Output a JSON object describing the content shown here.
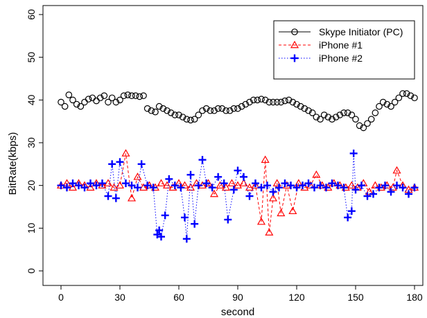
{
  "chart_data": {
    "type": "scatter",
    "title": "",
    "xlabel": "second",
    "ylabel": "BitRate(kbps)",
    "xlim": [
      0,
      180
    ],
    "ylim": [
      0,
      60
    ],
    "xticks": [
      "0",
      "30",
      "60",
      "90",
      "120",
      "150",
      "180"
    ],
    "yticks": [
      "0",
      "10",
      "20",
      "30",
      "40",
      "50",
      "60"
    ],
    "grid": false,
    "legend_position": "top-right",
    "series": [
      {
        "name": "Skype Initiator (PC)",
        "color": "#000000",
        "marker": "circle",
        "line": "solid",
        "x": [
          0,
          2,
          4,
          6,
          8,
          10,
          12,
          14,
          16,
          18,
          20,
          22,
          24,
          26,
          28,
          30,
          32,
          34,
          36,
          38,
          40,
          42,
          44,
          46,
          48,
          50,
          52,
          54,
          56,
          58,
          60,
          62,
          64,
          66,
          68,
          70,
          72,
          74,
          76,
          78,
          80,
          82,
          84,
          86,
          88,
          90,
          92,
          94,
          96,
          98,
          100,
          102,
          104,
          106,
          108,
          110,
          112,
          114,
          116,
          118,
          120,
          122,
          124,
          126,
          128,
          130,
          132,
          134,
          136,
          138,
          140,
          142,
          144,
          146,
          148,
          150,
          152,
          154,
          156,
          158,
          160,
          162,
          164,
          166,
          168,
          170,
          172,
          174,
          176,
          178,
          180
        ],
        "y": [
          39.5,
          38.5,
          41.2,
          40,
          39,
          38.5,
          39.5,
          40.2,
          40.5,
          39.8,
          40.5,
          41,
          39.5,
          40.5,
          39.5,
          40,
          41,
          41.2,
          41,
          41,
          40.8,
          41,
          38,
          37.5,
          37.2,
          38.5,
          38,
          37.5,
          37,
          36.5,
          36.5,
          36,
          35.5,
          35.3,
          35.5,
          36.5,
          37.5,
          38,
          37.5,
          37.5,
          38,
          38,
          37.5,
          37.5,
          38,
          38,
          38.5,
          39,
          39.5,
          40,
          40,
          40.2,
          40,
          39.5,
          39.5,
          39.5,
          39.5,
          39.8,
          40,
          39.5,
          39,
          38.5,
          38,
          37.5,
          37,
          36,
          35.5,
          36.5,
          36,
          35.5,
          36,
          36.5,
          37,
          37,
          36.5,
          35.5,
          34,
          33.5,
          34.5,
          35.5,
          37,
          38.5,
          39.5,
          39,
          38.5,
          39.5,
          40.5,
          41.5,
          41.5,
          41,
          40.5
        ]
      },
      {
        "name": "iPhone #1",
        "color": "#ff0000",
        "marker": "triangle",
        "line": "dashed",
        "x": [
          0,
          3,
          6,
          9,
          12,
          15,
          18,
          21,
          24,
          27,
          30,
          33,
          36,
          39,
          42,
          45,
          48,
          51,
          54,
          57,
          60,
          63,
          66,
          69,
          72,
          75,
          78,
          81,
          84,
          87,
          90,
          93,
          96,
          99,
          102,
          104,
          106,
          108,
          110,
          112,
          115,
          118,
          121,
          124,
          127,
          130,
          133,
          136,
          139,
          142,
          145,
          148,
          151,
          154,
          157,
          160,
          163,
          166,
          169,
          171,
          174,
          177,
          180
        ],
        "y": [
          20,
          20.5,
          19.5,
          20.5,
          20,
          19.5,
          20.5,
          20,
          20.5,
          19.5,
          20,
          27.5,
          17,
          22,
          19.5,
          20,
          19.5,
          20.5,
          20,
          19.5,
          20.5,
          20,
          19.5,
          20.5,
          20,
          20.5,
          18,
          20,
          19.5,
          20.5,
          20,
          20.5,
          19.5,
          20,
          11.5,
          26,
          9,
          17,
          20.5,
          13.5,
          20,
          14,
          20.5,
          19.5,
          20,
          22.5,
          20,
          19.5,
          20.5,
          20,
          19.5,
          20,
          19.5,
          20.5,
          18.5,
          20,
          19.5,
          20,
          19.5,
          23.5,
          20,
          19,
          19.5
        ]
      },
      {
        "name": "iPhone #2",
        "color": "#0000ff",
        "marker": "plus",
        "line": "dotted",
        "x": [
          0,
          3,
          6,
          9,
          12,
          15,
          18,
          21,
          24,
          26,
          28,
          30,
          33,
          36,
          39,
          41,
          44,
          47,
          49,
          50,
          51,
          53,
          55,
          58,
          61,
          63,
          64,
          66,
          68,
          70,
          72,
          74,
          77,
          80,
          83,
          85,
          88,
          90,
          93,
          96,
          99,
          102,
          105,
          108,
          111,
          114,
          117,
          120,
          123,
          126,
          129,
          132,
          135,
          138,
          141,
          144,
          146,
          148,
          149,
          150,
          153,
          156,
          159,
          162,
          165,
          168,
          171,
          174,
          177,
          180
        ],
        "y": [
          20,
          19.5,
          20.5,
          20,
          19.5,
          20.5,
          20,
          20.5,
          17.5,
          25,
          17,
          25.5,
          20.5,
          20,
          19.5,
          25,
          20,
          19.5,
          8.5,
          9.5,
          8,
          13,
          21.5,
          20,
          19.5,
          12.5,
          7.5,
          22.5,
          11,
          20,
          26,
          20.5,
          19.5,
          22,
          20.5,
          12,
          19,
          23.5,
          22,
          17.5,
          20.5,
          19.5,
          20,
          18.5,
          19.5,
          20.5,
          20,
          19.5,
          20,
          20.5,
          19.5,
          20,
          19.5,
          20.5,
          20,
          19.5,
          12.5,
          14,
          27.5,
          19,
          20,
          17.5,
          18,
          19.5,
          20,
          18.5,
          20,
          19.5,
          18,
          19.5
        ]
      }
    ]
  }
}
